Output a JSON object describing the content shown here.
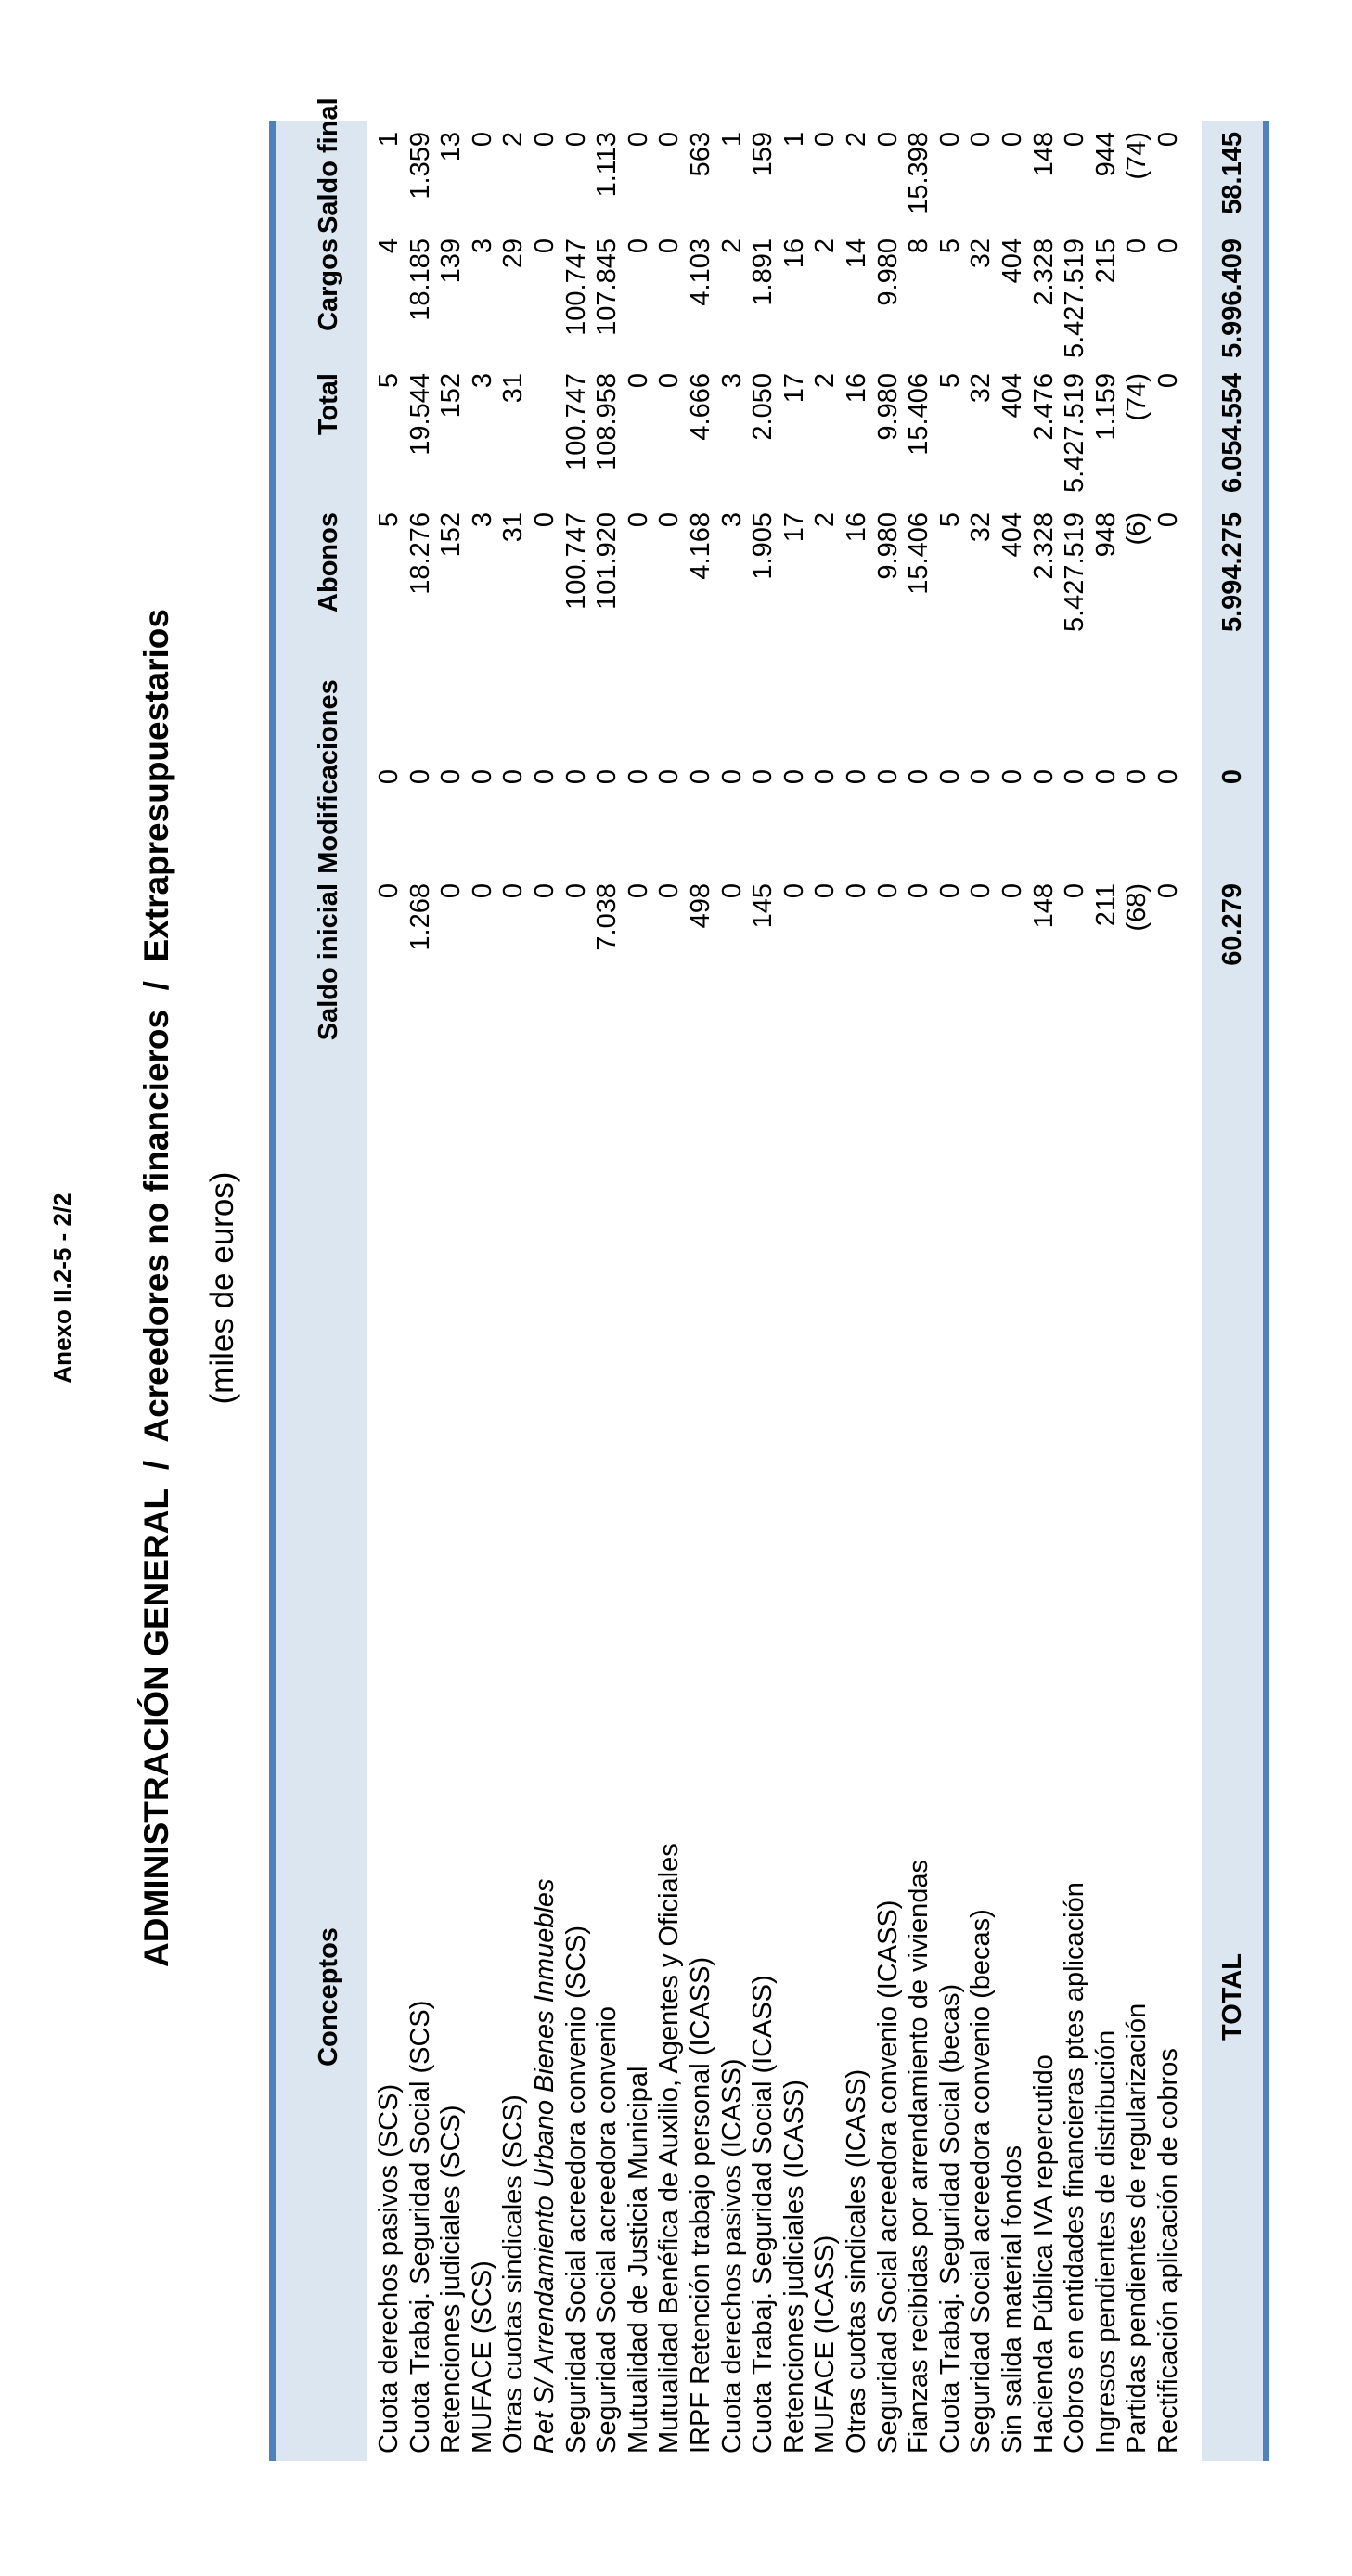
{
  "annex": "Anexo II.2-5 - 2/2",
  "title": "ADMINISTRACIÓN GENERAL  /  Acreedores no financieros  /  Extrapresupuestarios",
  "subtitle": "(miles de euros)",
  "headers": {
    "concepto": "Conceptos",
    "saldo_inicial": "Saldo inicial",
    "modificaciones": "Modificaciones",
    "abonos": "Abonos",
    "total": "Total",
    "cargos": "Cargos",
    "saldo_final": "Saldo final"
  },
  "rows": [
    {
      "concepto": "Cuota derechos pasivos (SCS)",
      "saldo_inicial": "0",
      "modificaciones": "0",
      "abonos": "5",
      "total": "5",
      "cargos": "4",
      "saldo_final": "1"
    },
    {
      "concepto": "Cuota Trabaj. Seguridad Social (SCS)",
      "saldo_inicial": "1.268",
      "modificaciones": "0",
      "abonos": "18.276",
      "total": "19.544",
      "cargos": "18.185",
      "saldo_final": "1.359"
    },
    {
      "concepto": "Retenciones judiciales (SCS)",
      "saldo_inicial": "0",
      "modificaciones": "0",
      "abonos": "152",
      "total": "152",
      "cargos": "139",
      "saldo_final": "13"
    },
    {
      "concepto": "MUFACE (SCS)",
      "saldo_inicial": "0",
      "modificaciones": "0",
      "abonos": "3",
      "total": "3",
      "cargos": "3",
      "saldo_final": "0"
    },
    {
      "concepto": "Otras cuotas sindicales (SCS)",
      "saldo_inicial": "0",
      "modificaciones": "0",
      "abonos": "31",
      "total": "31",
      "cargos": "29",
      "saldo_final": "2"
    },
    {
      "concepto": "Ret S/ Arrendamiento Urbano Bienes Inmuebles",
      "saldo_inicial": "0",
      "modificaciones": "0",
      "abonos": "0",
      "total": "",
      "cargos": "0",
      "saldo_final": "0",
      "italic": true
    },
    {
      "concepto": "Seguridad Social acreedora convenio (SCS)",
      "saldo_inicial": "0",
      "modificaciones": "0",
      "abonos": "100.747",
      "total": "100.747",
      "cargos": "100.747",
      "saldo_final": "0"
    },
    {
      "concepto": "Seguridad Social acreedora convenio",
      "saldo_inicial": "7.038",
      "modificaciones": "0",
      "abonos": "101.920",
      "total": "108.958",
      "cargos": "107.845",
      "saldo_final": "1.113"
    },
    {
      "concepto": "Mutualidad de Justicia Municipal",
      "saldo_inicial": "0",
      "modificaciones": "0",
      "abonos": "0",
      "total": "0",
      "cargos": "0",
      "saldo_final": "0"
    },
    {
      "concepto": "Mutualidad Benéfica de Auxilio, Agentes y Oficiales",
      "saldo_inicial": "0",
      "modificaciones": "0",
      "abonos": "0",
      "total": "0",
      "cargos": "0",
      "saldo_final": "0"
    },
    {
      "concepto": "IRPF Retención trabajo personal (ICASS)",
      "saldo_inicial": "498",
      "modificaciones": "0",
      "abonos": "4.168",
      "total": "4.666",
      "cargos": "4.103",
      "saldo_final": "563"
    },
    {
      "concepto": "Cuota derechos pasivos (ICASS)",
      "saldo_inicial": "0",
      "modificaciones": "0",
      "abonos": "3",
      "total": "3",
      "cargos": "2",
      "saldo_final": "1"
    },
    {
      "concepto": "Cuota Trabaj. Seguridad Social (ICASS)",
      "saldo_inicial": "145",
      "modificaciones": "0",
      "abonos": "1.905",
      "total": "2.050",
      "cargos": "1.891",
      "saldo_final": "159"
    },
    {
      "concepto": "Retenciones judiciales (ICASS)",
      "saldo_inicial": "0",
      "modificaciones": "0",
      "abonos": "17",
      "total": "17",
      "cargos": "16",
      "saldo_final": "1"
    },
    {
      "concepto": "MUFACE (ICASS)",
      "saldo_inicial": "0",
      "modificaciones": "0",
      "abonos": "2",
      "total": "2",
      "cargos": "2",
      "saldo_final": "0"
    },
    {
      "concepto": "Otras cuotas sindicales (ICASS)",
      "saldo_inicial": "0",
      "modificaciones": "0",
      "abonos": "16",
      "total": "16",
      "cargos": "14",
      "saldo_final": "2"
    },
    {
      "concepto": "Seguridad Social acreedora convenio (ICASS)",
      "saldo_inicial": "0",
      "modificaciones": "0",
      "abonos": "9.980",
      "total": "9.980",
      "cargos": "9.980",
      "saldo_final": "0"
    },
    {
      "concepto": "Fianzas recibidas por arrendamiento de viviendas",
      "saldo_inicial": "0",
      "modificaciones": "0",
      "abonos": "15.406",
      "total": "15.406",
      "cargos": "8",
      "saldo_final": "15.398"
    },
    {
      "concepto": "Cuota Trabaj. Seguridad Social (becas)",
      "saldo_inicial": "0",
      "modificaciones": "0",
      "abonos": "5",
      "total": "5",
      "cargos": "5",
      "saldo_final": "0"
    },
    {
      "concepto": "Seguridad Social acreedora convenio (becas)",
      "saldo_inicial": "0",
      "modificaciones": "0",
      "abonos": "32",
      "total": "32",
      "cargos": "32",
      "saldo_final": "0"
    },
    {
      "concepto": "Sin salida material fondos",
      "saldo_inicial": "0",
      "modificaciones": "0",
      "abonos": "404",
      "total": "404",
      "cargos": "404",
      "saldo_final": "0"
    },
    {
      "concepto": "Hacienda Pública IVA repercutido",
      "saldo_inicial": "148",
      "modificaciones": "0",
      "abonos": "2.328",
      "total": "2.476",
      "cargos": "2.328",
      "saldo_final": "148"
    },
    {
      "concepto": "Cobros en entidades financieras ptes aplicación",
      "saldo_inicial": "0",
      "modificaciones": "0",
      "abonos": "5.427.519",
      "total": "5.427.519",
      "cargos": "5.427.519",
      "saldo_final": "0"
    },
    {
      "concepto": "Ingresos pendientes de distribución",
      "saldo_inicial": "211",
      "modificaciones": "0",
      "abonos": "948",
      "total": "1.159",
      "cargos": "215",
      "saldo_final": "944"
    },
    {
      "concepto": "Partidas pendientes de regularización",
      "saldo_inicial": "(68)",
      "modificaciones": "0",
      "abonos": "(6)",
      "total": "(74)",
      "cargos": "0",
      "saldo_final": "(74)"
    },
    {
      "concepto": "Rectificación aplicación de cobros",
      "saldo_inicial": "0",
      "modificaciones": "0",
      "abonos": "0",
      "total": "0",
      "cargos": "0",
      "saldo_final": "0"
    }
  ],
  "totals": {
    "concepto": "TOTAL",
    "saldo_inicial": "60.279",
    "modificaciones": "0",
    "abonos": "5.994.275",
    "total": "6.054.554",
    "cargos": "5.996.409",
    "saldo_final": "58.145"
  }
}
